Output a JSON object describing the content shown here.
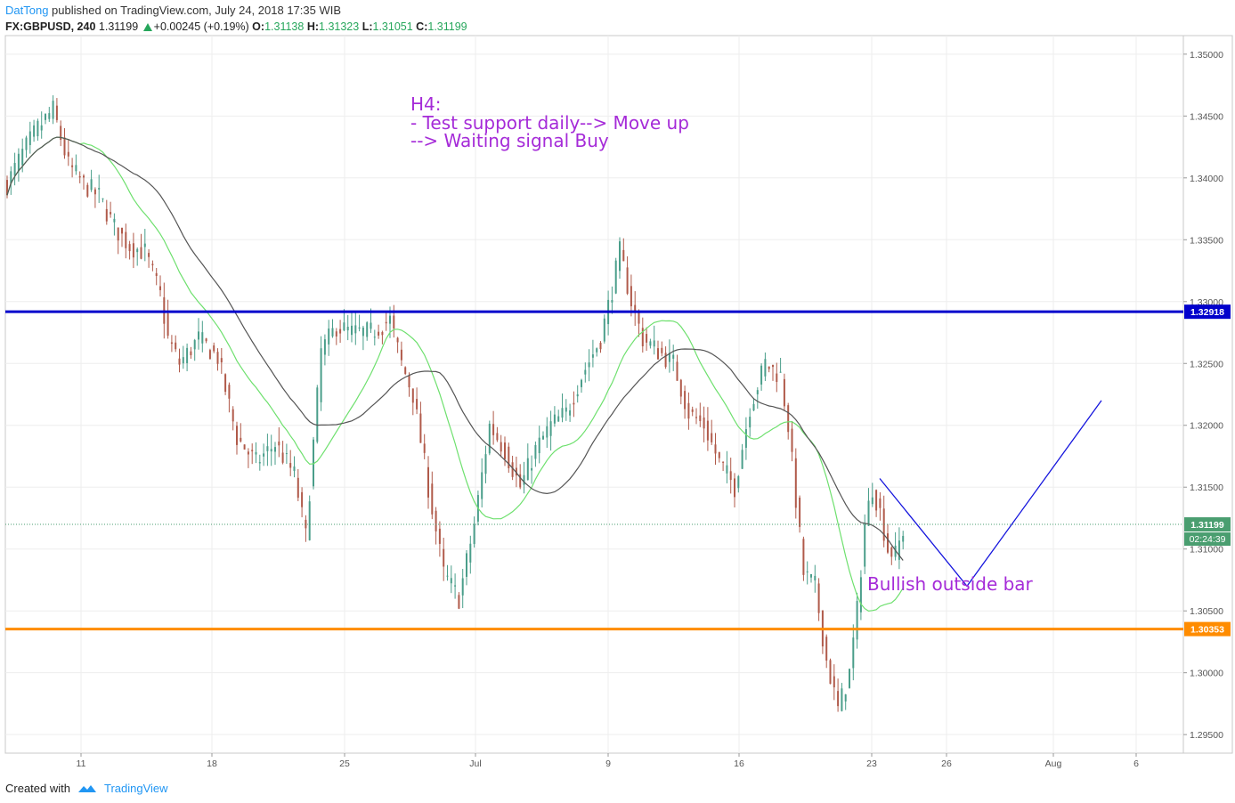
{
  "header": {
    "author": "DatTong",
    "published": "published on TradingView.com, July 24, 2018 17:35 WIB",
    "symbol": "FX:GBPUSD, 240",
    "last": "1.31199",
    "change": "+0.00245 (+0.19%)",
    "o_label": "O:",
    "o": "1.31138",
    "h_label": "H:",
    "h": "1.31323",
    "l_label": "L:",
    "l": "1.31051",
    "c_label": "C:",
    "c": "1.31199"
  },
  "footer": {
    "created_with": "Created with",
    "brand": "TradingView"
  },
  "colors": {
    "up": "#4a9e8a",
    "down": "#b05a4a",
    "ma_fast": "#6ee06e",
    "ma_slow": "#555555",
    "resistance": "#0000cc",
    "support": "#ff8c00",
    "projection": "#1515dd",
    "annotation": "#a52bd8",
    "price_badge": "#4a9e70"
  },
  "chart_data": {
    "type": "candlestick",
    "symbol": "FX:GBPUSD",
    "timeframe": "240",
    "ylim": [
      1.2935,
      1.3515
    ],
    "y_ticks": [
      "1.35000",
      "1.34500",
      "1.34000",
      "1.33500",
      "1.33000",
      "1.32500",
      "1.32000",
      "1.31500",
      "1.31000",
      "1.30500",
      "1.30000",
      "1.29500"
    ],
    "x_ticks": [
      "11",
      "18",
      "25",
      "Jul",
      "9",
      "16",
      "23",
      "26",
      "Aug",
      "6"
    ],
    "horizontal_lines": [
      {
        "value": 1.32918,
        "label": "1.32918"
      },
      {
        "value": 1.30353,
        "label": "1.30353"
      }
    ],
    "last_price": {
      "value": 1.31199,
      "label": "1.31199",
      "countdown": "02:24:39"
    },
    "annotations": [
      "H4:",
      "- Test support daily--> Move up",
      "--> Waiting signal Buy",
      "Bullish outside bar"
    ],
    "projection_path_prices": [
      1.3157,
      1.307,
      1.322
    ],
    "price_path": [
      [
        0,
        1.3395
      ],
      [
        4,
        1.342
      ],
      [
        8,
        1.344
      ],
      [
        12,
        1.3455
      ],
      [
        16,
        1.341
      ],
      [
        20,
        1.3395
      ],
      [
        24,
        1.3385
      ],
      [
        28,
        1.336
      ],
      [
        32,
        1.3345
      ],
      [
        36,
        1.334
      ],
      [
        40,
        1.3305
      ],
      [
        42,
        1.327
      ],
      [
        45,
        1.325
      ],
      [
        50,
        1.327
      ],
      [
        55,
        1.3255
      ],
      [
        60,
        1.319
      ],
      [
        65,
        1.317
      ],
      [
        70,
        1.3185
      ],
      [
        75,
        1.316
      ],
      [
        78,
        1.311
      ],
      [
        82,
        1.326
      ],
      [
        86,
        1.328
      ],
      [
        90,
        1.3275
      ],
      [
        95,
        1.3275
      ],
      [
        100,
        1.3285
      ],
      [
        103,
        1.325
      ],
      [
        106,
        1.3225
      ],
      [
        110,
        1.315
      ],
      [
        114,
        1.308
      ],
      [
        118,
        1.306
      ],
      [
        122,
        1.312
      ],
      [
        126,
        1.32
      ],
      [
        130,
        1.318
      ],
      [
        134,
        1.315
      ],
      [
        138,
        1.318
      ],
      [
        142,
        1.32
      ],
      [
        146,
        1.321
      ],
      [
        150,
        1.324
      ],
      [
        155,
        1.327
      ],
      [
        158,
        1.331
      ],
      [
        160,
        1.334
      ],
      [
        163,
        1.33
      ],
      [
        166,
        1.327
      ],
      [
        170,
        1.326
      ],
      [
        174,
        1.325
      ],
      [
        178,
        1.321
      ],
      [
        182,
        1.32
      ],
      [
        186,
        1.317
      ],
      [
        190,
        1.315
      ],
      [
        194,
        1.3215
      ],
      [
        198,
        1.325
      ],
      [
        202,
        1.324
      ],
      [
        204,
        1.32
      ],
      [
        206,
        1.314
      ],
      [
        208,
        1.308
      ],
      [
        211,
        1.307
      ],
      [
        214,
        1.301
      ],
      [
        217,
        1.297
      ],
      [
        220,
        1.3
      ],
      [
        222,
        1.305
      ],
      [
        224,
        1.312
      ],
      [
        226,
        1.315
      ],
      [
        228,
        1.313
      ],
      [
        230,
        1.31
      ],
      [
        232,
        1.3095
      ],
      [
        234,
        1.3115
      ]
    ]
  }
}
